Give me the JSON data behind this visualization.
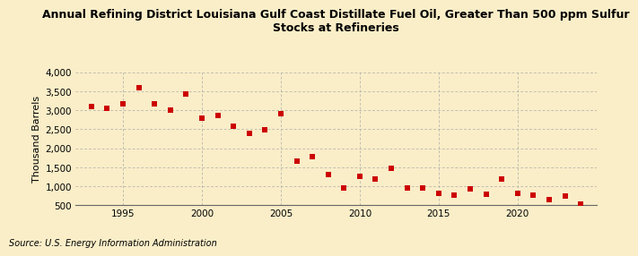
{
  "title": "Annual Refining District Louisiana Gulf Coast Distillate Fuel Oil, Greater Than 500 ppm Sulfur\nStocks at Refineries",
  "ylabel": "Thousand Barrels",
  "source": "Source: U.S. Energy Information Administration",
  "background_color": "#faeec8",
  "grid_color": "#aaaaaa",
  "marker_color": "#cc0000",
  "years": [
    1993,
    1994,
    1995,
    1996,
    1997,
    1998,
    1999,
    2000,
    2001,
    2002,
    2003,
    2004,
    2005,
    2006,
    2007,
    2008,
    2009,
    2010,
    2011,
    2012,
    2013,
    2014,
    2015,
    2016,
    2017,
    2018,
    2019,
    2020,
    2021,
    2022,
    2023,
    2024
  ],
  "values": [
    3100,
    3050,
    3180,
    3600,
    3180,
    3010,
    3430,
    2800,
    2870,
    2590,
    2380,
    2490,
    2900,
    1670,
    1790,
    1310,
    950,
    1250,
    1190,
    1470,
    960,
    960,
    820,
    760,
    920,
    790,
    1180,
    820,
    760,
    650,
    730,
    520
  ],
  "ylim": [
    500,
    4000
  ],
  "yticks": [
    500,
    1000,
    1500,
    2000,
    2500,
    3000,
    3500,
    4000
  ],
  "xlim": [
    1992.0,
    2025.0
  ],
  "xticks": [
    1995,
    2000,
    2005,
    2010,
    2015,
    2020
  ],
  "title_fontsize": 9,
  "tick_fontsize": 7.5,
  "ylabel_fontsize": 8,
  "source_fontsize": 7
}
